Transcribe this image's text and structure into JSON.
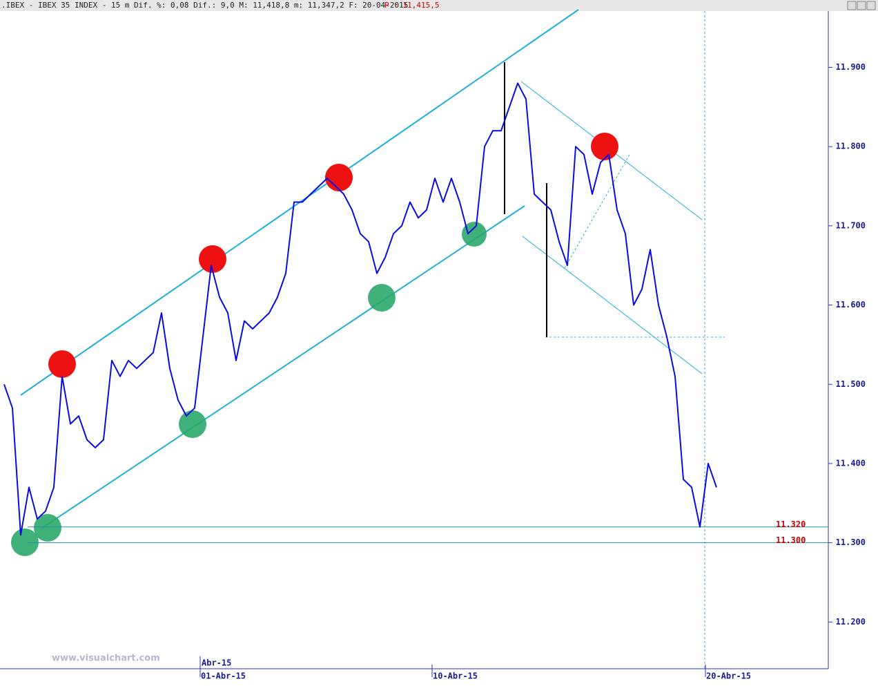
{
  "chart_data": {
    "type": "line",
    "title": ".IBEX - IBEX 35 INDEX -  15 m Dif. %: 0,08 Dif.: 9,0 M: 11,418,8 m: 11,347,2 F: 20-04-2015",
    "last_price": "P : 11,415,5",
    "watermark": "www.visualchart.com",
    "month_label": "Abr-15",
    "categories": [
      null,
      null,
      null,
      null,
      null,
      null,
      null,
      null,
      null,
      null,
      null,
      null,
      null,
      null,
      null,
      null,
      null,
      null,
      null,
      null,
      null,
      null,
      null,
      null,
      "01-Abr-15",
      null,
      null,
      null,
      null,
      null,
      null,
      null,
      null,
      null,
      null,
      null,
      null,
      null,
      null,
      null,
      null,
      null,
      null,
      null,
      null,
      null,
      null,
      null,
      null,
      null,
      null,
      null,
      "10-Abr-15",
      null,
      null,
      null,
      null,
      null,
      null,
      null,
      null,
      null,
      null,
      null,
      null,
      null,
      null,
      null,
      null,
      null,
      null,
      null,
      null,
      null,
      null,
      null,
      null,
      null,
      null,
      null,
      null,
      null,
      null,
      null,
      null,
      "20-Abr-15",
      null,
      null,
      null,
      null,
      null,
      null,
      null,
      null,
      null,
      null,
      null,
      null,
      null,
      null
    ],
    "series": [
      {
        "name": "IBEX 35",
        "color": "#0a0ae6",
        "values": [
          11500,
          11470,
          11310,
          11370,
          11330,
          11340,
          11370,
          11510,
          11450,
          11460,
          11430,
          11420,
          11430,
          11530,
          11510,
          11530,
          11520,
          11530,
          11540,
          11590,
          11520,
          11480,
          11460,
          11470,
          11560,
          11650,
          11610,
          11590,
          11530,
          11580,
          11570,
          11580,
          11590,
          11610,
          11640,
          11730,
          11730,
          11740,
          11750,
          11760,
          11750,
          11740,
          11720,
          11690,
          11680,
          11640,
          11660,
          11690,
          11700,
          11730,
          11710,
          11720,
          11760,
          11730,
          11760,
          11730,
          11690,
          11700,
          11800,
          11820,
          11820,
          11850,
          11880,
          11860,
          11740,
          11730,
          11720,
          11680,
          11650,
          11800,
          11790,
          11740,
          11780,
          11790,
          11720,
          11690,
          11600,
          11620,
          11670,
          11600,
          11560,
          11510,
          11380,
          11370,
          11320,
          11400,
          11370,
          null,
          null,
          null,
          null,
          null,
          null,
          null,
          null,
          null,
          null,
          null,
          null,
          null
        ]
      }
    ],
    "hlines": [
      {
        "value": 11320,
        "label": "11.320"
      },
      {
        "value": 11300,
        "label": "11.300"
      }
    ],
    "ylim": [
      11141,
      11985
    ],
    "yticks": [
      {
        "value": 11200,
        "label": "11.200"
      },
      {
        "value": 11300,
        "label": "11.300"
      },
      {
        "value": 11400,
        "label": "11.400"
      },
      {
        "value": 11500,
        "label": "11.500"
      },
      {
        "value": 11600,
        "label": "11.600"
      },
      {
        "value": 11700,
        "label": "11.700"
      },
      {
        "value": 11800,
        "label": "11.800"
      },
      {
        "value": 11900,
        "label": "11.900"
      }
    ]
  }
}
